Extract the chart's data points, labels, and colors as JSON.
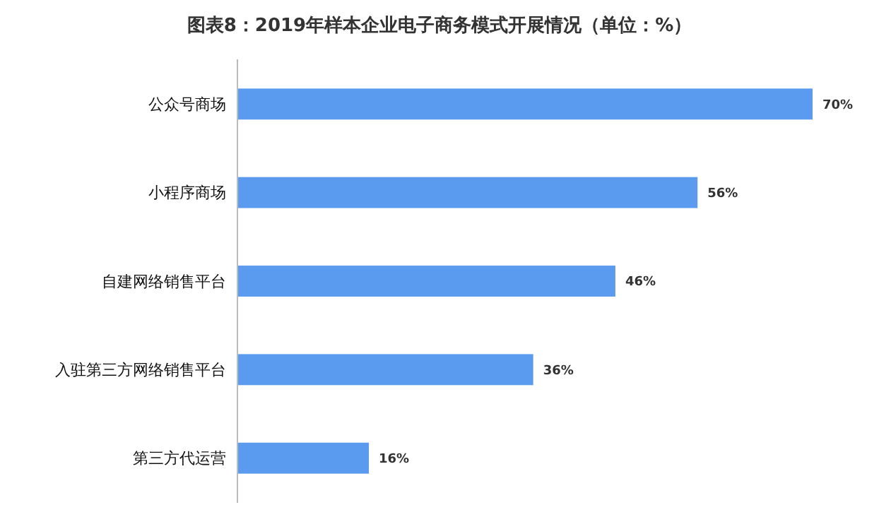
{
  "chart_data": {
    "type": "bar",
    "orientation": "horizontal",
    "title": "图表8：2019年样本企业电子商务模式开展情况（单位：%）",
    "categories": [
      "公众号商场",
      "小程序商场",
      "自建网络销售平台",
      "入驻第三方网络销售平台",
      "第三方代运营"
    ],
    "values": [
      70,
      56,
      46,
      36,
      16
    ],
    "value_labels": [
      "70%",
      "56%",
      "46%",
      "36%",
      "16%"
    ],
    "color": "#5b9bef"
  }
}
